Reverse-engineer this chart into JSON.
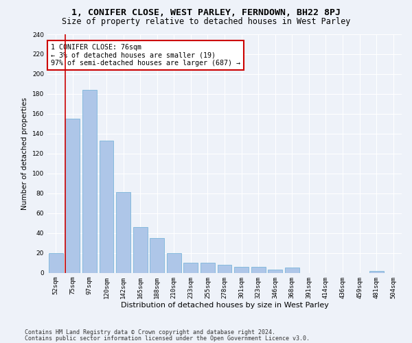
{
  "title": "1, CONIFER CLOSE, WEST PARLEY, FERNDOWN, BH22 8PJ",
  "subtitle": "Size of property relative to detached houses in West Parley",
  "xlabel": "Distribution of detached houses by size in West Parley",
  "ylabel": "Number of detached properties",
  "categories": [
    "52sqm",
    "75sqm",
    "97sqm",
    "120sqm",
    "142sqm",
    "165sqm",
    "188sqm",
    "210sqm",
    "233sqm",
    "255sqm",
    "278sqm",
    "301sqm",
    "323sqm",
    "346sqm",
    "368sqm",
    "391sqm",
    "414sqm",
    "436sqm",
    "459sqm",
    "481sqm",
    "504sqm"
  ],
  "values": [
    20,
    155,
    184,
    133,
    81,
    46,
    35,
    20,
    10,
    10,
    8,
    6,
    6,
    3,
    5,
    0,
    0,
    0,
    0,
    2,
    0
  ],
  "bar_color": "#aec6e8",
  "bar_edge_color": "#6aaed6",
  "vline_color": "#cc0000",
  "annotation_box_text": "1 CONIFER CLOSE: 76sqm\n← 3% of detached houses are smaller (19)\n97% of semi-detached houses are larger (687) →",
  "annotation_box_color": "#ffffff",
  "annotation_box_edge_color": "#cc0000",
  "ylim": [
    0,
    240
  ],
  "yticks": [
    0,
    20,
    40,
    60,
    80,
    100,
    120,
    140,
    160,
    180,
    200,
    220,
    240
  ],
  "footer_line1": "Contains HM Land Registry data © Crown copyright and database right 2024.",
  "footer_line2": "Contains public sector information licensed under the Open Government Licence v3.0.",
  "bg_color": "#eef2f9",
  "plot_bg_color": "#eef2f9",
  "grid_color": "#ffffff",
  "title_fontsize": 9.5,
  "subtitle_fontsize": 8.5,
  "xlabel_fontsize": 8,
  "ylabel_fontsize": 7.5,
  "tick_fontsize": 6.5,
  "annotation_fontsize": 7.2,
  "footer_fontsize": 6
}
